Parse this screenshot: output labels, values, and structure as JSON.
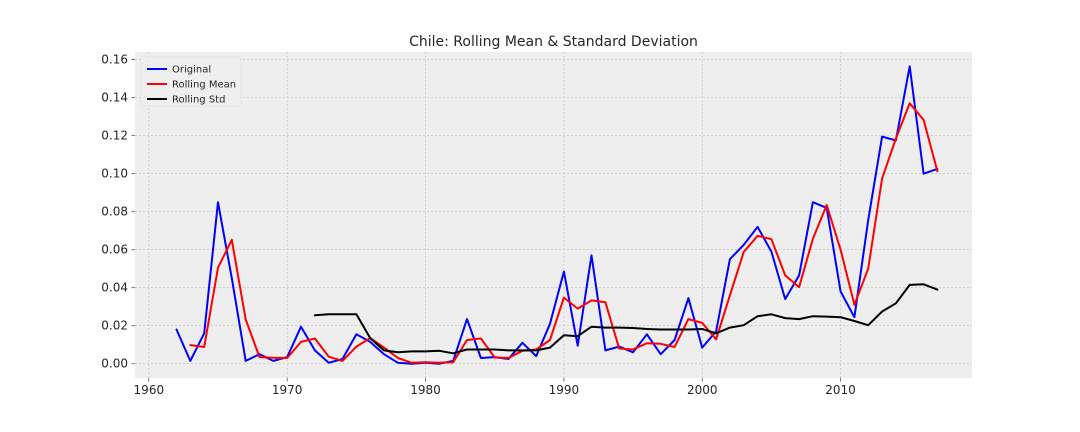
{
  "chart_data": {
    "type": "line",
    "title": "Chile: Rolling Mean & Standard Deviation",
    "xlabel": "",
    "ylabel": "",
    "xlim": [
      1959,
      2019.5
    ],
    "ylim": [
      -0.0075,
      0.164
    ],
    "x_ticks": [
      1960,
      1970,
      1980,
      1990,
      2000,
      2010
    ],
    "y_ticks": [
      0.0,
      0.02,
      0.04,
      0.06,
      0.08,
      0.1,
      0.12,
      0.14,
      0.16
    ],
    "y_tick_labels": [
      "0.00",
      "0.02",
      "0.04",
      "0.06",
      "0.08",
      "0.10",
      "0.12",
      "0.14",
      "0.16"
    ],
    "grid": true,
    "legend_position": "upper-left",
    "background": "#eeeeee",
    "series": [
      {
        "name": "Original",
        "color": "#0000ff",
        "x": [
          1962,
          1963,
          1964,
          1965,
          1966,
          1967,
          1968,
          1969,
          1970,
          1971,
          1972,
          1973,
          1974,
          1975,
          1976,
          1977,
          1978,
          1979,
          1980,
          1981,
          1982,
          1983,
          1984,
          1985,
          1986,
          1987,
          1988,
          1989,
          1990,
          1991,
          1992,
          1993,
          1994,
          1995,
          1996,
          1997,
          1998,
          1999,
          2000,
          2001,
          2002,
          2003,
          2004,
          2005,
          2006,
          2007,
          2008,
          2009,
          2010,
          2011,
          2012,
          2013,
          2014,
          2015,
          2016,
          2017
        ],
        "values": [
          0.018,
          0.0015,
          0.016,
          0.085,
          0.045,
          0.0015,
          0.005,
          0.0015,
          0.0035,
          0.0195,
          0.007,
          0.0005,
          0.0025,
          0.0155,
          0.0115,
          0.005,
          0.0005,
          0.0,
          0.0005,
          0.0,
          0.0015,
          0.0235,
          0.003,
          0.0035,
          0.0025,
          0.011,
          0.004,
          0.021,
          0.0485,
          0.0095,
          0.057,
          0.007,
          0.009,
          0.006,
          0.0155,
          0.005,
          0.0125,
          0.0345,
          0.0085,
          0.017,
          0.055,
          0.0625,
          0.072,
          0.059,
          0.034,
          0.0465,
          0.085,
          0.082,
          0.038,
          0.0245,
          0.0755,
          0.1195,
          0.1175,
          0.1565,
          0.1,
          0.1025
        ]
      },
      {
        "name": "Rolling Mean",
        "color": "#ff0000",
        "x": [
          1963,
          1964,
          1965,
          1966,
          1967,
          1968,
          1969,
          1970,
          1971,
          1972,
          1973,
          1974,
          1975,
          1976,
          1977,
          1978,
          1979,
          1980,
          1981,
          1982,
          1983,
          1984,
          1985,
          1986,
          1987,
          1988,
          1989,
          1990,
          1991,
          1992,
          1993,
          1994,
          1995,
          1996,
          1997,
          1998,
          1999,
          2000,
          2001,
          2002,
          2003,
          2004,
          2005,
          2006,
          2007,
          2008,
          2009,
          2010,
          2011,
          2012,
          2013,
          2014,
          2015,
          2016,
          2017
        ],
        "values": [
          0.0098,
          0.0088,
          0.0505,
          0.0652,
          0.0233,
          0.0035,
          0.0032,
          0.003,
          0.0115,
          0.0133,
          0.0037,
          0.0015,
          0.009,
          0.0135,
          0.0085,
          0.003,
          0.0005,
          0.0008,
          0.0005,
          0.0008,
          0.0125,
          0.0133,
          0.0033,
          0.003,
          0.0068,
          0.0075,
          0.0125,
          0.0348,
          0.029,
          0.0333,
          0.0323,
          0.008,
          0.0075,
          0.0108,
          0.0105,
          0.0088,
          0.0235,
          0.0215,
          0.0128,
          0.036,
          0.0588,
          0.0673,
          0.0655,
          0.0465,
          0.0403,
          0.0658,
          0.0835,
          0.06,
          0.031,
          0.05,
          0.0975,
          0.1185,
          0.137,
          0.1283,
          0.1013
        ]
      },
      {
        "name": "Rolling Std",
        "color": "#000000",
        "x": [
          1972,
          1973,
          1974,
          1975,
          1976,
          1977,
          1978,
          1979,
          1980,
          1981,
          1982,
          1983,
          1984,
          1985,
          1986,
          1987,
          1988,
          1989,
          1990,
          1991,
          1992,
          1993,
          1994,
          1995,
          1996,
          1997,
          1998,
          1999,
          2000,
          2001,
          2002,
          2003,
          2004,
          2005,
          2006,
          2007,
          2008,
          2009,
          2010,
          2011,
          2012,
          2013,
          2014,
          2015,
          2016,
          2017
        ],
        "values": [
          0.0255,
          0.026,
          0.026,
          0.026,
          0.0135,
          0.007,
          0.006,
          0.0065,
          0.0065,
          0.0068,
          0.0055,
          0.0075,
          0.0075,
          0.0075,
          0.007,
          0.007,
          0.007,
          0.0085,
          0.015,
          0.0145,
          0.0195,
          0.019,
          0.019,
          0.0188,
          0.0183,
          0.018,
          0.018,
          0.018,
          0.0183,
          0.016,
          0.019,
          0.0203,
          0.025,
          0.026,
          0.024,
          0.0235,
          0.025,
          0.0248,
          0.0245,
          0.0225,
          0.0203,
          0.0275,
          0.0318,
          0.0415,
          0.0418,
          0.039
        ]
      }
    ]
  }
}
